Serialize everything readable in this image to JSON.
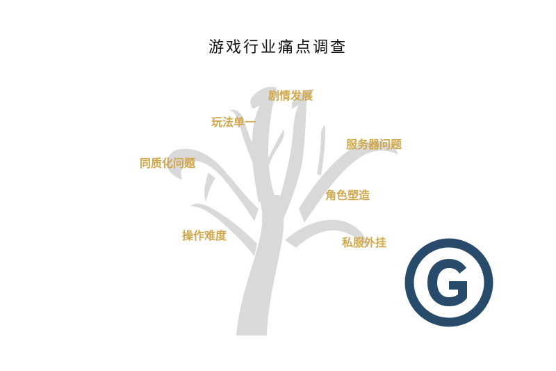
{
  "title": "游戏行业痛点调查",
  "colors": {
    "tree": "#d9d9d9",
    "label": "#d0a84c",
    "logo": "#284a6b",
    "title": "#111111"
  },
  "labels": {
    "plot": "剧情发展",
    "gameplay": "玩法单一",
    "server": "服务器问题",
    "homogeneity": "同质化问题",
    "character": "角色塑造",
    "operation": "操作难度",
    "private_server": "私服外挂"
  },
  "logo": {
    "letter": "G"
  }
}
